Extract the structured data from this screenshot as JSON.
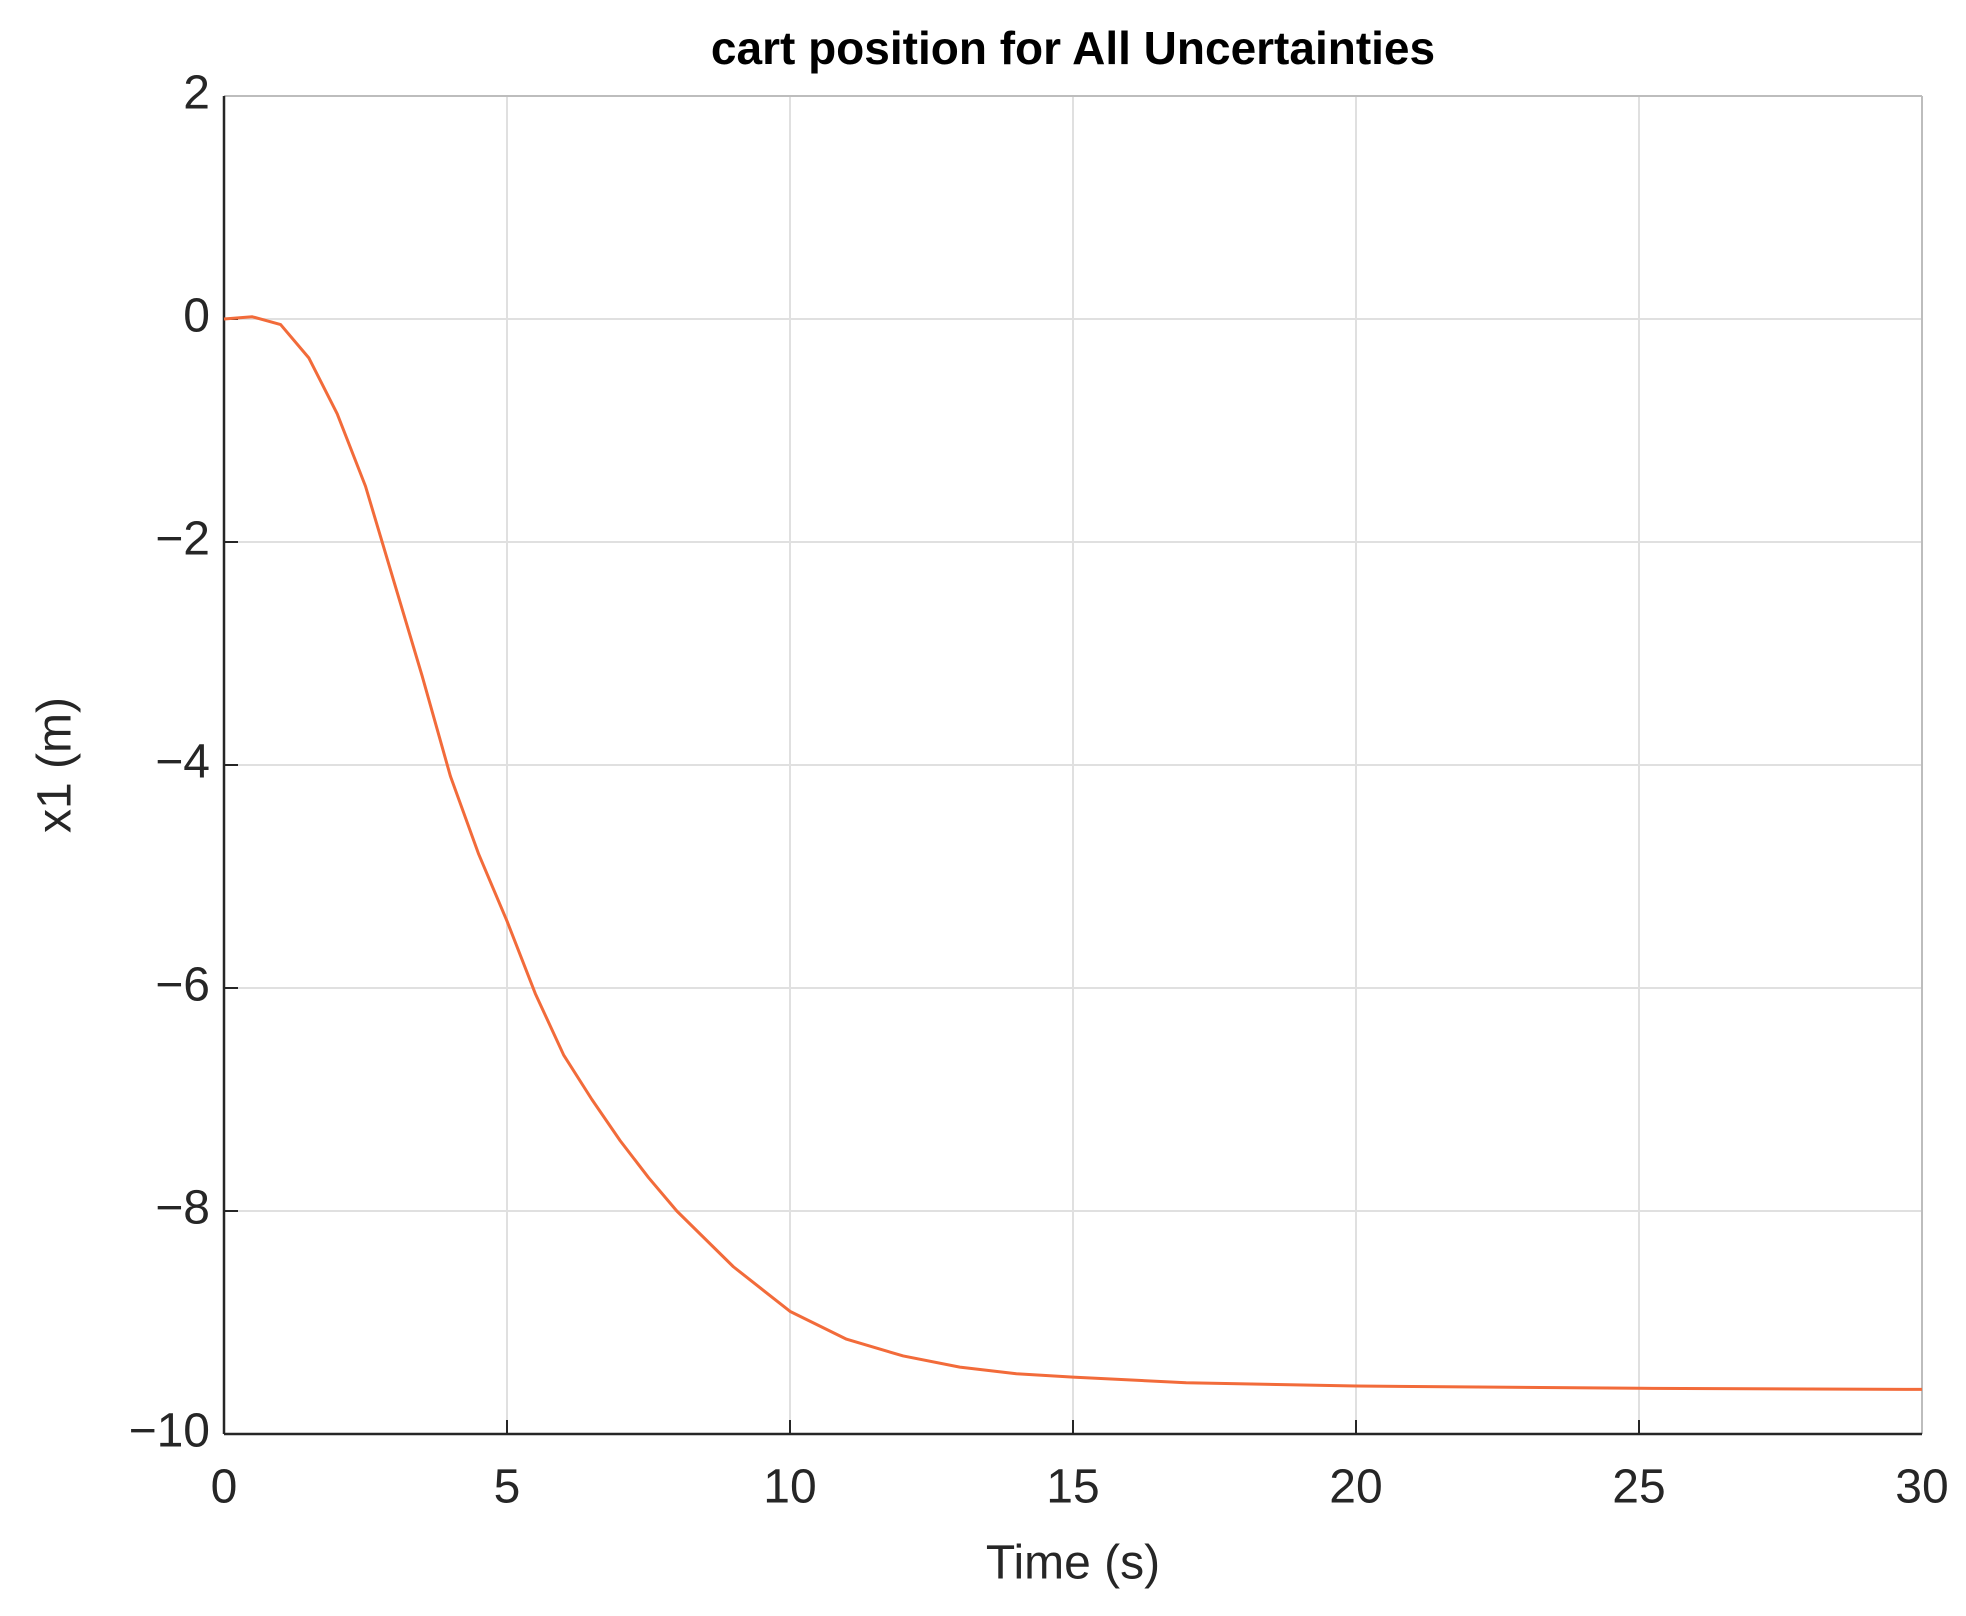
{
  "chart_data": {
    "type": "line",
    "title": "cart position for All Uncertainties",
    "x_label": "Time (s)",
    "y_label": "x1 (m)",
    "x": [
      0,
      0.5,
      1,
      1.5,
      2,
      2.5,
      3,
      3.5,
      4,
      4.5,
      5,
      5.5,
      6,
      6.5,
      7,
      7.5,
      8,
      9,
      10,
      11,
      12,
      13,
      14,
      15,
      17,
      20,
      25,
      30
    ],
    "series": [
      {
        "color": "#f26b3a",
        "values": [
          0,
          0.02,
          -0.05,
          -0.35,
          -0.85,
          -1.5,
          -2.35,
          -3.2,
          -4.1,
          -4.8,
          -5.4,
          -6.05,
          -6.6,
          -7.0,
          -7.37,
          -7.7,
          -8.0,
          -8.5,
          -8.9,
          -9.15,
          -9.3,
          -9.4,
          -9.46,
          -9.49,
          -9.54,
          -9.57,
          -9.59,
          -9.6
        ]
      }
    ],
    "xlim": [
      0,
      30
    ],
    "xticks": [
      0,
      5,
      10,
      15,
      20,
      25,
      30
    ],
    "ylim": [
      -10,
      2
    ],
    "yticks": [
      {
        "value": -10,
        "label": "−10"
      },
      {
        "value": -8,
        "label": "−8"
      },
      {
        "value": -6,
        "label": "−6"
      },
      {
        "value": -4,
        "label": "−4"
      },
      {
        "value": -2,
        "label": "−2"
      },
      0,
      2
    ],
    "grid": true
  }
}
